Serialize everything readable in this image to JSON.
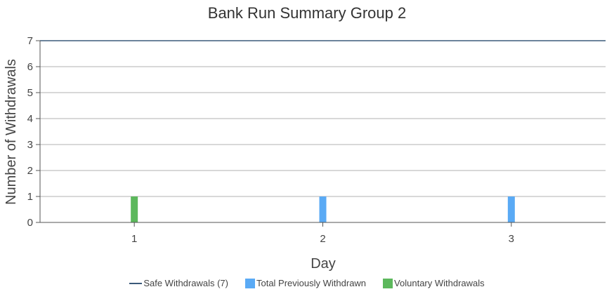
{
  "chart_data": {
    "type": "bar",
    "title": "Bank Run Summary Group 2",
    "xlabel": "Day",
    "ylabel": "Number of Withdrawals",
    "categories": [
      "1",
      "2",
      "3"
    ],
    "ylim": [
      0,
      7
    ],
    "yticks": [
      0,
      1,
      2,
      3,
      4,
      5,
      6,
      7
    ],
    "grid": true,
    "legend_position": "bottom",
    "reference_line": {
      "name": "Safe Withdrawals (7)",
      "value": 7,
      "color": "#3b5a7a"
    },
    "series": [
      {
        "name": "Total Previously Withdrawn",
        "color": "#5aaaf5",
        "values": [
          0,
          1,
          1
        ]
      },
      {
        "name": "Voluntary Withdrawals",
        "color": "#5cb85c",
        "values": [
          1,
          0,
          0
        ]
      }
    ]
  }
}
